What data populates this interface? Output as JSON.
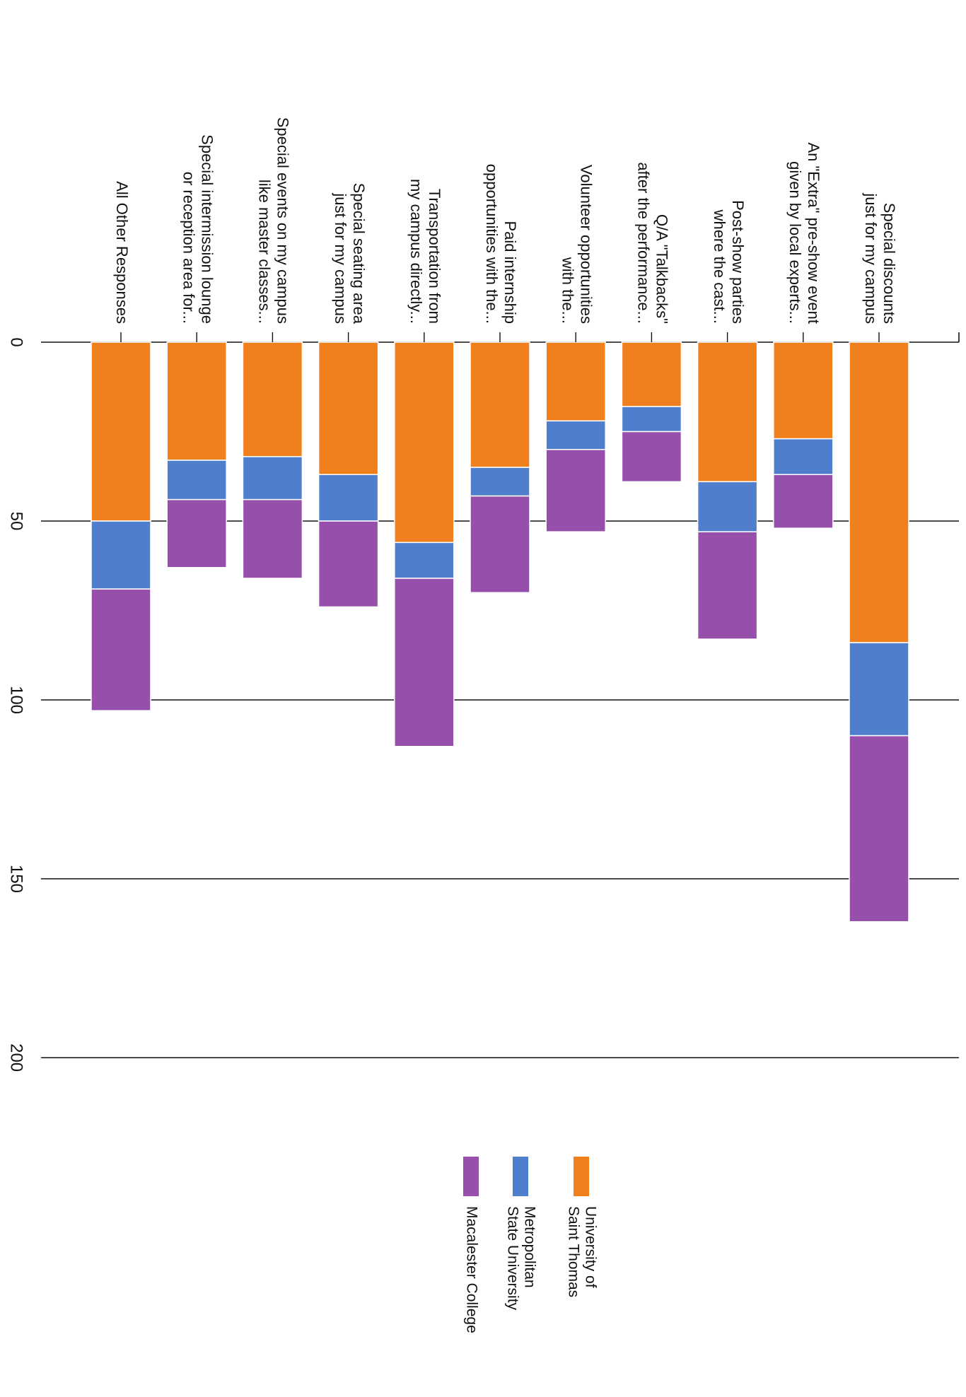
{
  "chart_data": {
    "type": "bar",
    "stacked": true,
    "orientation": "vertical (rotated 90 degrees)",
    "grid": true,
    "legend_position": "bottom",
    "ylim": [
      0,
      200
    ],
    "yticks": [
      "0",
      "50",
      "100",
      "150",
      "200"
    ],
    "categories": [
      "All Other Responses",
      "Special intermission lounge or reception area for...",
      "Special events on my campus like master classes...",
      "Special seating area just for my campus",
      "Transportation from my campus directly...",
      "Paid internship opportunities with the...",
      "Volunteer opportunities with the...",
      "Q/A \"Talkbacks\" after the performance...",
      "Post-show parties where the cast...",
      "An \"Extra\" pre-show event given by local experts...",
      "Special discounts just for my campus"
    ],
    "category_lines": [
      [
        "All Other Responses"
      ],
      [
        "Special intermission lounge",
        "or reception area for..."
      ],
      [
        "Special events on my campus",
        "like master classes..."
      ],
      [
        "Special seating area",
        "just for my campus"
      ],
      [
        "Transportation from",
        "my campus directly..."
      ],
      [
        "Paid internship",
        "opportunities with the..."
      ],
      [
        "Volunteer opportunities",
        "with the..."
      ],
      [
        "Q/A \"Talkbacks\"",
        "after the performance..."
      ],
      [
        "Post-show parties",
        "where the cast..."
      ],
      [
        "An \"Extra\" pre-show event",
        "given by local experts..."
      ],
      [
        "Special discounts",
        "just for my campus"
      ]
    ],
    "series": [
      {
        "name": "University of Saint Thomas",
        "name_lines": [
          "University of",
          "Saint Thomas"
        ],
        "color": "#f07f1d",
        "values": [
          50,
          33,
          32,
          37,
          56,
          35,
          22,
          18,
          39,
          27,
          84
        ]
      },
      {
        "name": "Metropolitan State University",
        "name_lines": [
          "Metropolitan",
          "State University"
        ],
        "color": "#4f7fcc",
        "values": [
          19,
          11,
          12,
          13,
          10,
          8,
          8,
          7,
          14,
          10,
          26
        ]
      },
      {
        "name": "Macalester College",
        "name_lines": [
          "Macalester College"
        ],
        "color": "#9650ab",
        "values": [
          34,
          19,
          22,
          24,
          47,
          27,
          23,
          14,
          30,
          15,
          52
        ]
      }
    ]
  }
}
